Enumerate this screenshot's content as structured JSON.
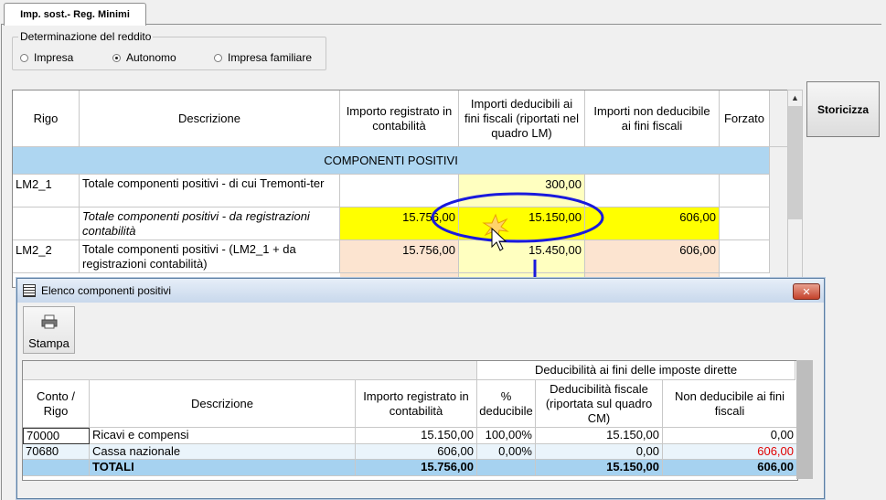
{
  "main": {
    "tab_label": "Imp. sost.- Reg. Minimi",
    "group_title": "Determinazione del reddito",
    "radios": [
      {
        "label": "Impresa",
        "checked": false
      },
      {
        "label": "Autonomo",
        "checked": true
      },
      {
        "label": "Impresa familiare",
        "checked": false
      }
    ],
    "storicizza_label": "Storicizza",
    "table": {
      "headers": {
        "rigo": "Rigo",
        "descrizione": "Descrizione",
        "importo": "Importo registrato in contabilità",
        "deducibili": "Importi deducibili ai fini fiscali (riportati nel quadro LM)",
        "non_deducibile": "Importi non deducibile ai fini fiscali",
        "forzato": "Forzato"
      },
      "section": "COMPONENTI POSITIVI",
      "rows": [
        {
          "rigo": "LM2_1",
          "descrizione": "Totale componenti positivi - di cui Tremonti-ter",
          "importo": "",
          "deducibili": "300,00",
          "non_deducibile": "",
          "forzato": ""
        },
        {
          "rigo": "",
          "descrizione": "Totale componenti positivi - da registrazioni contabilità",
          "importo": "15.756,00",
          "deducibili": "15.150,00",
          "non_deducibile": "606,00",
          "forzato": ""
        },
        {
          "rigo": "LM2_2",
          "descrizione": "Totale componenti positivi - (LM2_1 + da registrazioni contabilità)",
          "importo": "15.756,00",
          "deducibili": "15.450,00",
          "non_deducibile": "606,00",
          "forzato": ""
        }
      ]
    }
  },
  "dialog": {
    "title": "Elenco componenti positivi",
    "close_label": "✕",
    "stampa_label": "Stampa",
    "table": {
      "group_header": "Deducibilità ai fini delle imposte dirette",
      "headers": {
        "conto": "Conto / Rigo",
        "descrizione": "Descrizione",
        "importo": "Importo registrato in contabilità",
        "perc": "% deducibile",
        "deducibilita": "Deducibilità fiscale (riportata sul quadro CM)",
        "non_deducibile": "Non deducibile ai fini fiscali"
      },
      "rows": [
        {
          "conto": "70000",
          "descrizione": "Ricavi e compensi",
          "importo": "15.150,00",
          "perc": "100,00%",
          "deducibilita": "15.150,00",
          "non_deducibile": "0,00"
        },
        {
          "conto": "70680",
          "descrizione": "Cassa nazionale",
          "importo": "606,00",
          "perc": "0,00%",
          "deducibilita": "0,00",
          "non_deducibile": "606,00"
        }
      ],
      "totals": {
        "label": "TOTALI",
        "importo": "15.756,00",
        "deducibilita": "15.150,00",
        "non_deducibile": "606,00"
      }
    }
  },
  "colors": {
    "section_bg": "#aed6f1",
    "light_yellow": "#ffffc0",
    "yellow": "#ffff00",
    "peach": "#fce4d0",
    "highlight_blue": "#1a1adc",
    "red_value": "#e00000",
    "totals_bg": "#a6d2f0"
  }
}
